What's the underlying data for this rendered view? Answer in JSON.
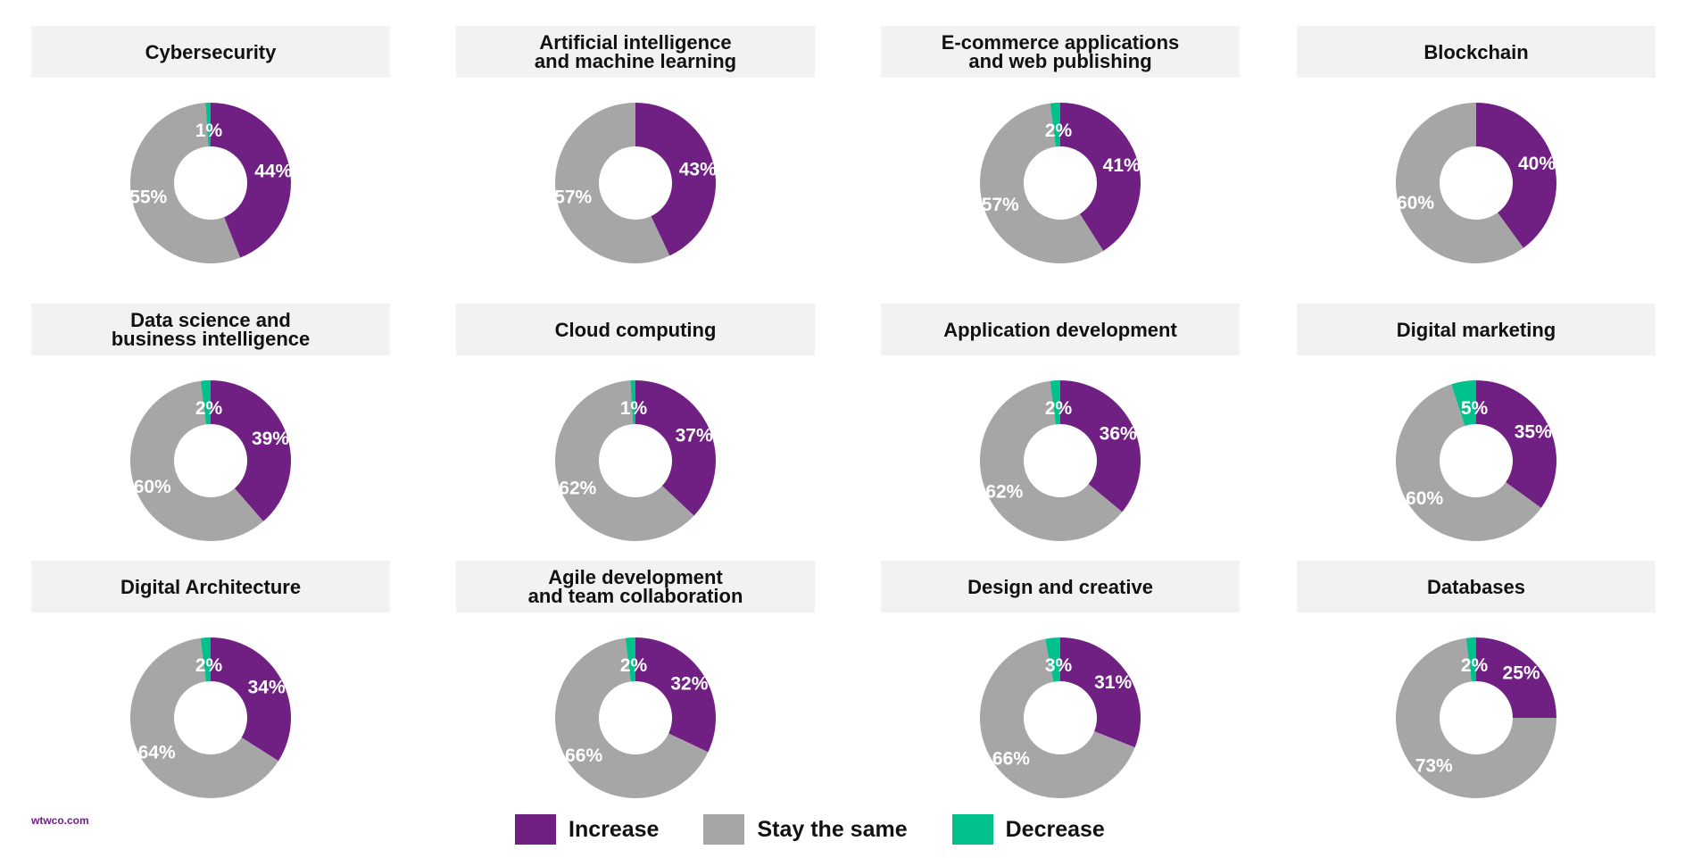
{
  "colors": {
    "increase": "#702082",
    "same": "#a6a6a6",
    "decrease": "#00c08b"
  },
  "legend": {
    "increase": "Increase",
    "same": "Stay the same",
    "decrease": "Decrease"
  },
  "source": "wtwco.com",
  "chart_data": [
    {
      "type": "pie",
      "title": "Cybersecurity",
      "values": [
        44,
        55,
        1
      ],
      "labels": [
        "44%",
        "55%",
        "1%"
      ]
    },
    {
      "type": "pie",
      "title": "Artificial intelligence\nand machine learning",
      "values": [
        43,
        57,
        0
      ],
      "labels": [
        "43%",
        "57%",
        ""
      ]
    },
    {
      "type": "pie",
      "title": "E-commerce applications\nand web publishing",
      "values": [
        41,
        57,
        2
      ],
      "labels": [
        "41%",
        "57%",
        "2%"
      ]
    },
    {
      "type": "pie",
      "title": "Blockchain",
      "values": [
        40,
        60,
        0
      ],
      "labels": [
        "40%",
        "60%",
        ""
      ]
    },
    {
      "type": "pie",
      "title": "Data science and\nbusiness intelligence",
      "values": [
        39,
        60,
        2
      ],
      "labels": [
        "39%",
        "60%",
        "2%"
      ]
    },
    {
      "type": "pie",
      "title": "Cloud computing",
      "values": [
        37,
        62,
        1
      ],
      "labels": [
        "37%",
        "62%",
        "1%"
      ]
    },
    {
      "type": "pie",
      "title": "Application development",
      "values": [
        36,
        62,
        2
      ],
      "labels": [
        "36%",
        "62%",
        "2%"
      ]
    },
    {
      "type": "pie",
      "title": "Digital marketing",
      "values": [
        35,
        60,
        5
      ],
      "labels": [
        "35%",
        "60%",
        "5%"
      ]
    },
    {
      "type": "pie",
      "title": "Digital Architecture",
      "values": [
        34,
        64,
        2
      ],
      "labels": [
        "34%",
        "64%",
        "2%"
      ]
    },
    {
      "type": "pie",
      "title": "Agile development\nand team collaboration",
      "values": [
        32,
        66,
        2
      ],
      "labels": [
        "32%",
        "66%",
        "2%"
      ]
    },
    {
      "type": "pie",
      "title": "Design and creative",
      "values": [
        31,
        66,
        3
      ],
      "labels": [
        "31%",
        "66%",
        "3%"
      ]
    },
    {
      "type": "pie",
      "title": "Databases",
      "values": [
        25,
        73,
        2
      ],
      "labels": [
        "25%",
        "73%",
        "2%"
      ]
    }
  ]
}
